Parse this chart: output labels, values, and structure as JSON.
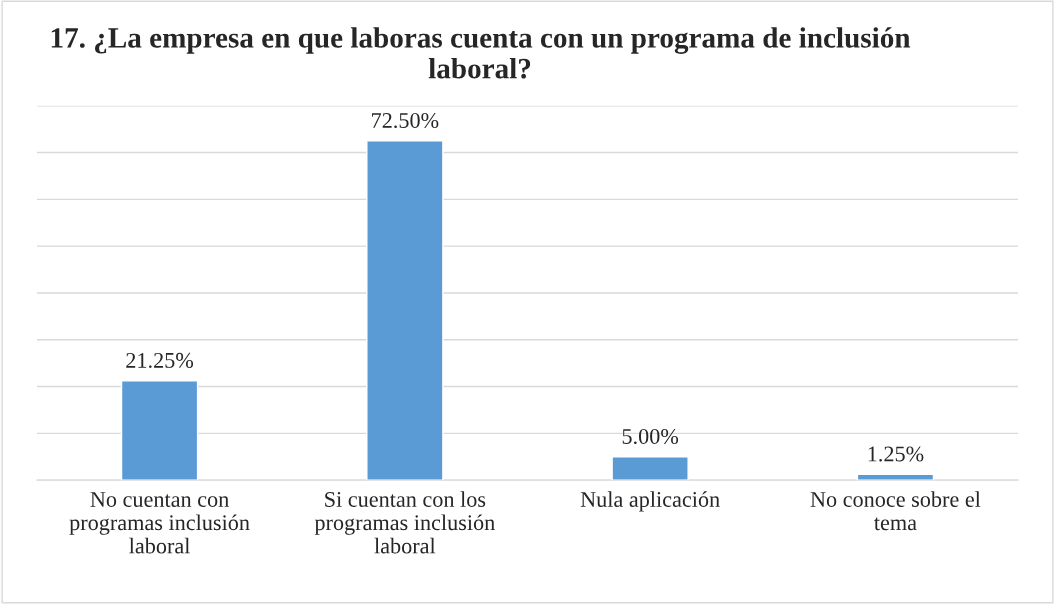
{
  "chart_data": {
    "type": "bar",
    "title": "17. ¿La empresa en que laboras cuenta con un programa de inclusión laboral?",
    "categories": [
      "No cuentan con programas inclusión laboral",
      "Si cuentan con los programas inclusión laboral",
      "Nula aplicación",
      "No conoce sobre el tema"
    ],
    "values": [
      21.25,
      72.5,
      5.0,
      1.25
    ],
    "value_labels": [
      "21.25%",
      "72.50%",
      "5.00%",
      "1.25%"
    ],
    "color": "#5b9bd5",
    "ylim": [
      0,
      80
    ],
    "yticks": [
      {
        "value": 0,
        "label": null
      },
      {
        "value": 10,
        "label": null
      },
      {
        "value": 20,
        "label": null
      },
      {
        "value": 30,
        "label": null
      },
      {
        "value": 40,
        "label": null
      },
      {
        "value": 50,
        "label": null
      },
      {
        "value": 60,
        "label": null
      },
      {
        "value": 70,
        "label": null
      },
      {
        "value": 80,
        "label": null
      }
    ],
    "grid": "y",
    "tick_labels": "x"
  }
}
